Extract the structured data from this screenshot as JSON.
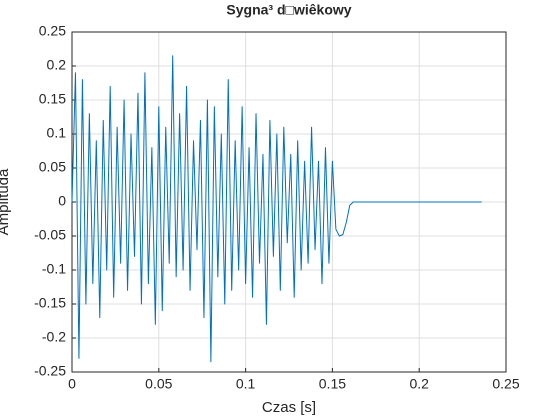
{
  "chart_data": {
    "type": "line",
    "title": "Sygna³ d□wiêkowy",
    "xlabel": "Czas [s]",
    "ylabel": "Amplituda",
    "x": [
      0,
      0.002,
      0.004,
      0.006,
      0.008,
      0.01,
      0.012,
      0.014,
      0.016,
      0.018,
      0.02,
      0.022,
      0.024,
      0.026,
      0.028,
      0.03,
      0.032,
      0.034,
      0.036,
      0.038,
      0.04,
      0.042,
      0.044,
      0.046,
      0.048,
      0.05,
      0.052,
      0.054,
      0.056,
      0.058,
      0.06,
      0.062,
      0.064,
      0.066,
      0.068,
      0.07,
      0.072,
      0.074,
      0.076,
      0.078,
      0.08,
      0.082,
      0.084,
      0.086,
      0.088,
      0.09,
      0.092,
      0.094,
      0.096,
      0.098,
      0.1,
      0.102,
      0.104,
      0.106,
      0.108,
      0.11,
      0.112,
      0.114,
      0.116,
      0.118,
      0.12,
      0.122,
      0.124,
      0.126,
      0.128,
      0.13,
      0.132,
      0.134,
      0.136,
      0.138,
      0.14,
      0.142,
      0.144,
      0.146,
      0.148,
      0.15,
      0.152,
      0.154,
      0.156,
      0.158,
      0.16,
      0.162,
      0.236
    ],
    "series": [
      {
        "name": "Amplituda",
        "color": "#0072bd",
        "values": [
          0,
          0.19,
          -0.23,
          0.18,
          -0.15,
          0.13,
          -0.12,
          0.09,
          -0.17,
          0.12,
          -0.1,
          0.17,
          -0.14,
          0.11,
          -0.09,
          0.15,
          -0.13,
          0.1,
          -0.08,
          0.16,
          -0.15,
          0.19,
          -0.12,
          0.08,
          -0.18,
          0.14,
          -0.16,
          0.11,
          -0.09,
          0.215,
          -0.11,
          0.13,
          -0.1,
          0.17,
          -0.13,
          0.09,
          -0.07,
          0.12,
          -0.17,
          0.15,
          -0.235,
          0.14,
          -0.11,
          0.1,
          -0.15,
          0.18,
          -0.13,
          0.09,
          -0.1,
          0.14,
          -0.12,
          0.08,
          -0.14,
          0.13,
          -0.09,
          0.07,
          -0.18,
          0.12,
          -0.08,
          0.1,
          -0.13,
          0.11,
          -0.06,
          0.07,
          -0.14,
          0.09,
          -0.1,
          0.06,
          -0.09,
          0.11,
          -0.07,
          0.06,
          -0.12,
          0.08,
          -0.09,
          0.06,
          -0.04,
          -0.05,
          -0.048,
          -0.03,
          -0.005,
          0,
          0
        ]
      }
    ],
    "xlim": [
      0,
      0.25
    ],
    "xticks": [
      0,
      0.05,
      0.1,
      0.15,
      0.2,
      0.25
    ],
    "ylim": [
      -0.25,
      0.25
    ],
    "yticks": [
      -0.25,
      -0.2,
      -0.15,
      -0.1,
      -0.05,
      0,
      0.05,
      0.1,
      0.15,
      0.2,
      0.25
    ],
    "grid": true
  }
}
